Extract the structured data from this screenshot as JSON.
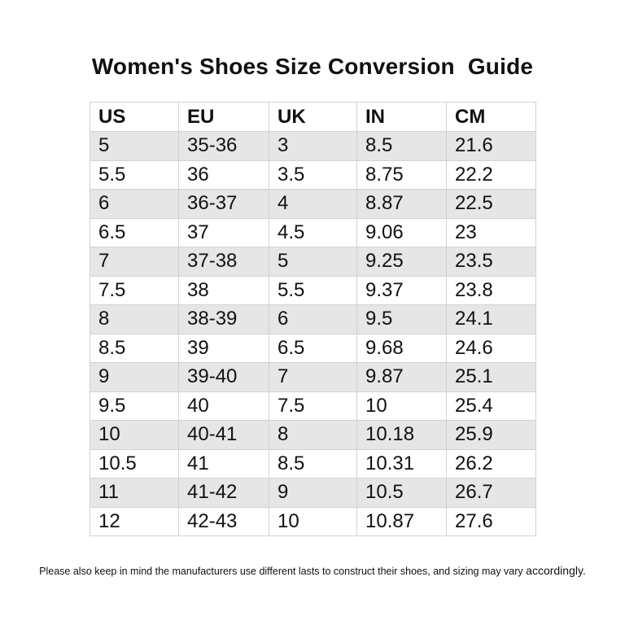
{
  "title": "Women's Shoes Size Conversion  Guide",
  "table": {
    "columns": [
      "US",
      "EU",
      "UK",
      "IN",
      "CM"
    ],
    "rows": [
      [
        "5",
        "35-36",
        "3",
        "8.5",
        "21.6"
      ],
      [
        "5.5",
        "36",
        "3.5",
        "8.75",
        "22.2"
      ],
      [
        "6",
        "36-37",
        "4",
        "8.87",
        "22.5"
      ],
      [
        "6.5",
        "37",
        "4.5",
        "9.06",
        "23"
      ],
      [
        "7",
        "37-38",
        "5",
        "9.25",
        "23.5"
      ],
      [
        "7.5",
        "38",
        "5.5",
        "9.37",
        "23.8"
      ],
      [
        "8",
        "38-39",
        "6",
        "9.5",
        "24.1"
      ],
      [
        "8.5",
        "39",
        "6.5",
        "9.68",
        "24.6"
      ],
      [
        "9",
        "39-40",
        "7",
        "9.87",
        "25.1"
      ],
      [
        "9.5",
        "40",
        "7.5",
        "10",
        "25.4"
      ],
      [
        "10",
        "40-41",
        "8",
        "10.18",
        "25.9"
      ],
      [
        "10.5",
        "41",
        "8.5",
        "10.31",
        "26.2"
      ],
      [
        "11",
        "41-42",
        "9",
        "10.5",
        "26.7"
      ],
      [
        "12",
        "42-43",
        "10",
        "10.87",
        "27.6"
      ]
    ]
  },
  "footnote": {
    "text": "Please also keep in mind the manufacturers use different lasts to construct their shoes, and sizing may vary ",
    "last_word": "accordingly."
  },
  "colors": {
    "shaded_row": "#e6e6e6",
    "plain_row": "#ffffff",
    "grid_line": "#d2d2d2",
    "text": "#111111"
  }
}
